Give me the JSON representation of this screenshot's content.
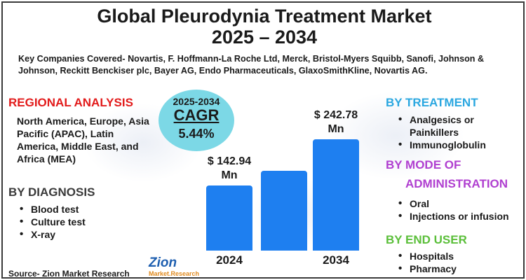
{
  "title_line1": "Global Pleurodynia Treatment Market",
  "title_line2": "2025 – 2034",
  "companies": "Key Companies Covered- Novartis, F. Hoffmann-La Roche Ltd, Merck, Bristol-Myers Squibb, Sanofi, Johnson & Johnson, Reckitt Benckiser plc, Bayer AG, Endo Pharmaceuticals, GlaxoSmithKline, Novartis AG.",
  "regional": {
    "heading": "REGIONAL ANALYSIS",
    "text": "North America, Europe, Asia Pacific (APAC), Latin America, Middle East, and Africa (MEA)"
  },
  "diagnosis": {
    "heading": "BY DIAGNOSIS",
    "items": [
      "Blood test",
      "Culture test",
      "X-ray"
    ]
  },
  "cagr": {
    "years": "2025-2034",
    "label": "CAGR",
    "value": "5.44%"
  },
  "treatment": {
    "heading": "BY TREATMENT",
    "items": [
      "Analgesics or Painkillers",
      "Immunoglobulin"
    ]
  },
  "mode": {
    "heading_line1": "BY MODE OF",
    "heading_line2": "ADMINISTRATION",
    "items": [
      "Oral",
      "Injections or infusion"
    ]
  },
  "end_user": {
    "heading": "BY END USER",
    "items": [
      "Hospitals",
      "Pharmacy"
    ]
  },
  "source": "Source- Zion Market Research",
  "logo": {
    "main": "Zion",
    "sub": "Market.Research"
  },
  "colors": {
    "bar": "#1e7ff0",
    "cagr_bubble": "#7cd8e6",
    "regional_heading": "#e21b1b",
    "treatment_heading": "#2aa7e0",
    "mode_heading": "#b03fd0",
    "end_user_heading": "#5bbf3a"
  },
  "chart_data": {
    "type": "bar",
    "categories": [
      "2024",
      "",
      "2034"
    ],
    "values": [
      142.94,
      175,
      242.78
    ],
    "value_labels": [
      "$ 142.94 Mn",
      "",
      "$ 242.78 Mn"
    ],
    "ylim": [
      0,
      260
    ],
    "unit": "USD Mn",
    "grid": false
  }
}
